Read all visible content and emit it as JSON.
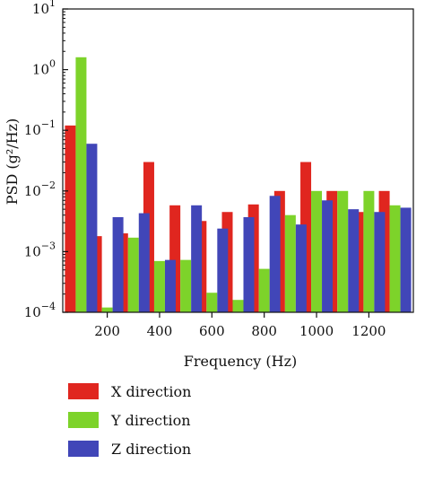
{
  "chart_data": {
    "type": "bar",
    "title": "",
    "xlabel": "Frequency (Hz)",
    "ylabel": "PSD (g²/Hz)",
    "yscale": "log",
    "ylim": [
      0.0001,
      10
    ],
    "xlim": [
      30,
      1370
    ],
    "x": [
      100,
      200,
      300,
      400,
      500,
      600,
      700,
      800,
      900,
      1000,
      1100,
      1200,
      1300
    ],
    "x_ticks": [
      200,
      400,
      600,
      800,
      1000,
      1200
    ],
    "y_ticks": [
      {
        "value": 0.0001,
        "base": "10",
        "exp": "−4"
      },
      {
        "value": 0.001,
        "base": "10",
        "exp": "−3"
      },
      {
        "value": 0.01,
        "base": "10",
        "exp": "−2"
      },
      {
        "value": 0.1,
        "base": "10",
        "exp": "−1"
      },
      {
        "value": 1,
        "base": "10",
        "exp": "0"
      },
      {
        "value": 10,
        "base": "10",
        "exp": "1"
      }
    ],
    "grid": false,
    "legend_position": "bottom",
    "series": [
      {
        "name": "X direction",
        "color": "#e0261f",
        "values": [
          0.12,
          0.0018,
          0.002,
          0.03,
          0.0058,
          0.0032,
          0.0045,
          0.006,
          0.01,
          0.03,
          0.01,
          0.0045,
          0.01
        ]
      },
      {
        "name": "Y direction",
        "color": "#7dd32a",
        "values": [
          1.6,
          0.00012,
          0.0017,
          0.0007,
          0.00073,
          0.00021,
          0.00016,
          0.00052,
          0.004,
          0.01,
          0.01,
          0.01,
          0.0058
        ]
      },
      {
        "name": "Z direction",
        "color": "#4146b8",
        "values": [
          0.06,
          0.0037,
          0.0043,
          0.00073,
          0.0058,
          0.0024,
          0.0037,
          0.0083,
          0.0028,
          0.007,
          0.005,
          0.0045,
          0.0053
        ]
      }
    ]
  }
}
